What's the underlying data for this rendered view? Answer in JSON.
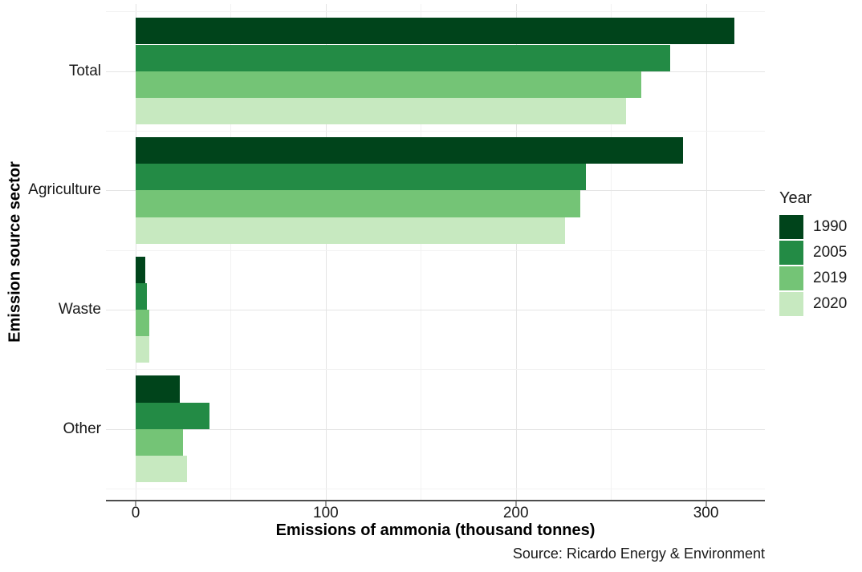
{
  "chart_data": {
    "type": "bar",
    "orientation": "horizontal",
    "categories": [
      "Total",
      "Agriculture",
      "Waste",
      "Other"
    ],
    "series": [
      {
        "name": "1990",
        "color": "#00441b",
        "values": [
          315,
          288,
          5,
          23
        ]
      },
      {
        "name": "2005",
        "color": "#238b45",
        "values": [
          281,
          237,
          6,
          39
        ]
      },
      {
        "name": "2019",
        "color": "#74c476",
        "values": [
          266,
          234,
          7,
          25
        ]
      },
      {
        "name": "2020",
        "color": "#c7e9c0",
        "values": [
          258,
          226,
          7,
          27
        ]
      }
    ],
    "xlabel": "Emissions of ammonia (thousand tonnes)",
    "ylabel": "Emission source sector",
    "x_ticks": [
      0,
      100,
      200,
      300
    ],
    "x_minor_ticks": [
      50,
      150,
      250
    ],
    "xlim": [
      0,
      331
    ],
    "grid": true,
    "legend_title": "Year",
    "legend_position": "right"
  },
  "source_note": "Source: Ricardo Energy & Environment"
}
